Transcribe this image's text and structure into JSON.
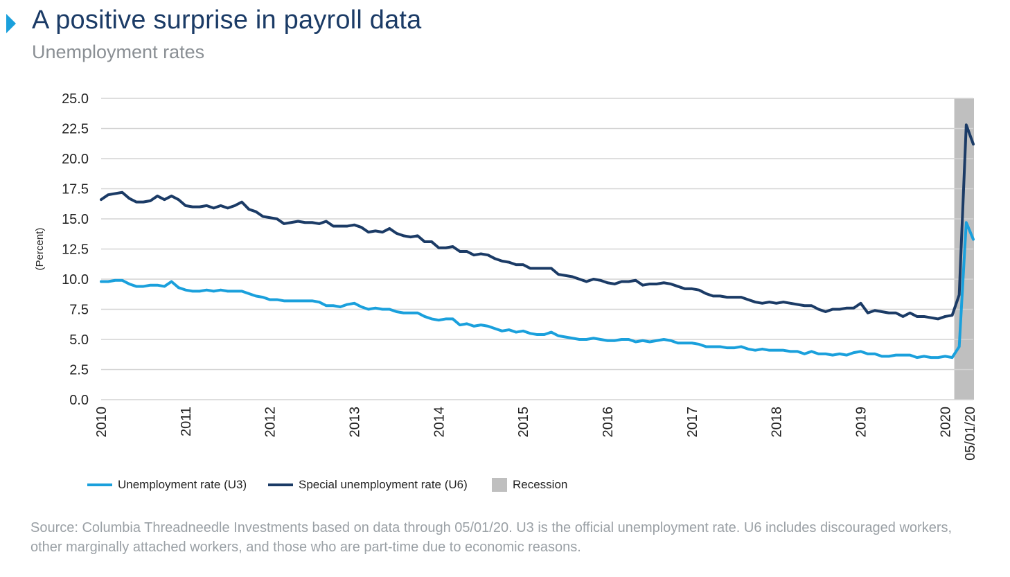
{
  "header": {
    "title": "A positive surprise in payroll data",
    "subtitle": "Unemployment rates"
  },
  "colors": {
    "u3": "#1aa0dc",
    "u6": "#1b3b66",
    "recession": "#bfbfbf",
    "title": "#1b3b66",
    "marker": "#1aa0dc"
  },
  "chart_data": {
    "type": "line",
    "ylabel": "(Percent)",
    "ylim": [
      0,
      25
    ],
    "y_ticks": [
      "25.0",
      "22.5",
      "20.0",
      "17.5",
      "15.0",
      "12.5",
      "10.0",
      "7.5",
      "5.0",
      "2.5",
      "0.0"
    ],
    "x_ticks": [
      "2010",
      "2011",
      "2012",
      "2013",
      "2014",
      "2015",
      "2016",
      "2017",
      "2018",
      "2019",
      "2020",
      "05/01/20"
    ],
    "x_start": "2010-01",
    "x_end": "2020-05",
    "grid": true,
    "recession": {
      "label": "Recession",
      "start": "2020-03",
      "end": "2020-05"
    },
    "series": [
      {
        "name": "Unemployment rate (U3)",
        "key": "u3",
        "values": [
          9.8,
          9.8,
          9.9,
          9.9,
          9.6,
          9.4,
          9.4,
          9.5,
          9.5,
          9.4,
          9.8,
          9.3,
          9.1,
          9.0,
          9.0,
          9.1,
          9.0,
          9.1,
          9.0,
          9.0,
          9.0,
          8.8,
          8.6,
          8.5,
          8.3,
          8.3,
          8.2,
          8.2,
          8.2,
          8.2,
          8.2,
          8.1,
          7.8,
          7.8,
          7.7,
          7.9,
          8.0,
          7.7,
          7.5,
          7.6,
          7.5,
          7.5,
          7.3,
          7.2,
          7.2,
          7.2,
          6.9,
          6.7,
          6.6,
          6.7,
          6.7,
          6.2,
          6.3,
          6.1,
          6.2,
          6.1,
          5.9,
          5.7,
          5.8,
          5.6,
          5.7,
          5.5,
          5.4,
          5.4,
          5.6,
          5.3,
          5.2,
          5.1,
          5.0,
          5.0,
          5.1,
          5.0,
          4.9,
          4.9,
          5.0,
          5.0,
          4.8,
          4.9,
          4.8,
          4.9,
          5.0,
          4.9,
          4.7,
          4.7,
          4.7,
          4.6,
          4.4,
          4.4,
          4.4,
          4.3,
          4.3,
          4.4,
          4.2,
          4.1,
          4.2,
          4.1,
          4.1,
          4.1,
          4.0,
          4.0,
          3.8,
          4.0,
          3.8,
          3.8,
          3.7,
          3.8,
          3.7,
          3.9,
          4.0,
          3.8,
          3.8,
          3.6,
          3.6,
          3.7,
          3.7,
          3.7,
          3.5,
          3.6,
          3.5,
          3.5,
          3.6,
          3.5,
          4.4,
          14.7,
          13.3
        ]
      },
      {
        "name": "Special unemployment rate (U6)",
        "key": "u6",
        "values": [
          16.6,
          17.0,
          17.1,
          17.2,
          16.7,
          16.4,
          16.4,
          16.5,
          16.9,
          16.6,
          16.9,
          16.6,
          16.1,
          16.0,
          16.0,
          16.1,
          15.9,
          16.1,
          15.9,
          16.1,
          16.4,
          15.8,
          15.6,
          15.2,
          15.1,
          15.0,
          14.6,
          14.7,
          14.8,
          14.7,
          14.7,
          14.6,
          14.8,
          14.4,
          14.4,
          14.4,
          14.5,
          14.3,
          13.9,
          14.0,
          13.9,
          14.2,
          13.8,
          13.6,
          13.5,
          13.6,
          13.1,
          13.1,
          12.6,
          12.6,
          12.7,
          12.3,
          12.3,
          12.0,
          12.1,
          12.0,
          11.7,
          11.5,
          11.4,
          11.2,
          11.2,
          10.9,
          10.9,
          10.9,
          10.9,
          10.4,
          10.3,
          10.2,
          10.0,
          9.8,
          10.0,
          9.9,
          9.7,
          9.6,
          9.8,
          9.8,
          9.9,
          9.5,
          9.6,
          9.6,
          9.7,
          9.6,
          9.4,
          9.2,
          9.2,
          9.1,
          8.8,
          8.6,
          8.6,
          8.5,
          8.5,
          8.5,
          8.3,
          8.1,
          8.0,
          8.1,
          8.0,
          8.1,
          8.0,
          7.9,
          7.8,
          7.8,
          7.5,
          7.3,
          7.5,
          7.5,
          7.6,
          7.6,
          8.0,
          7.2,
          7.4,
          7.3,
          7.2,
          7.2,
          6.9,
          7.2,
          6.9,
          6.9,
          6.8,
          6.7,
          6.9,
          7.0,
          8.7,
          22.8,
          21.2
        ]
      }
    ]
  },
  "legend": {
    "u3_label": "Unemployment rate (U3)",
    "u6_label": "Special unemployment rate (U6)",
    "recession_label": "Recession"
  },
  "source": {
    "text": "Source: Columbia Threadneedle Investments based on data through 05/01/20. U3 is the official unemployment rate. U6 includes discouraged workers, other marginally attached workers, and those who are part-time due to economic reasons."
  }
}
